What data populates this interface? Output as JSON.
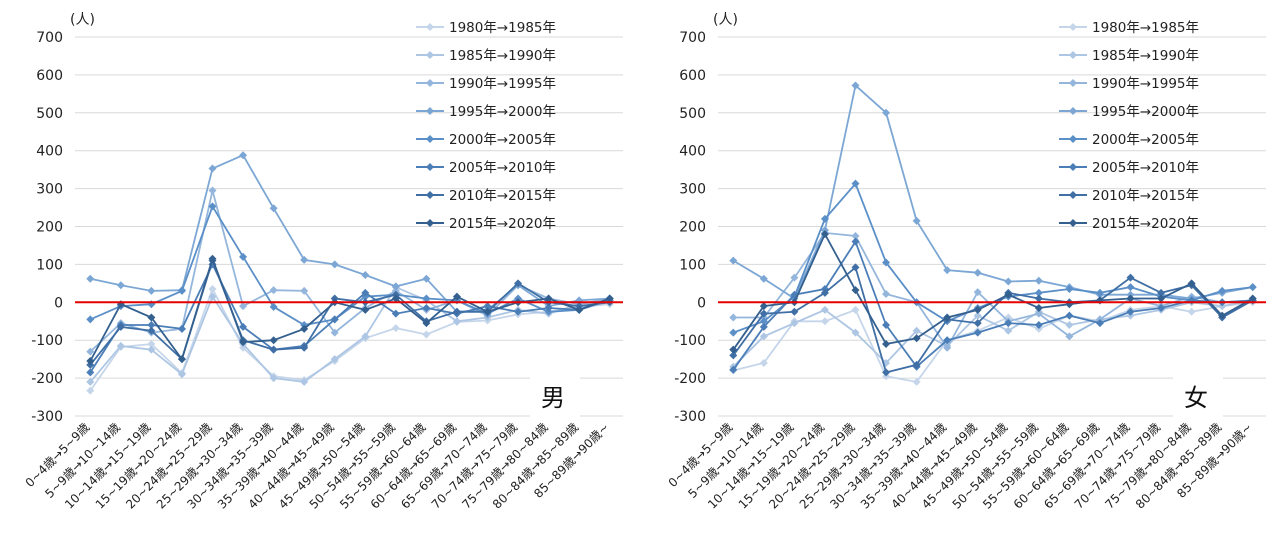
{
  "chart_data": [
    {
      "type": "line",
      "unit_label": "(人)",
      "panel_label": "男",
      "ylim": [
        -300,
        700
      ],
      "yticks": [
        700,
        600,
        500,
        400,
        300,
        200,
        100,
        0,
        -100,
        -200,
        -300
      ],
      "grid": true,
      "legend": "top-right",
      "zero_line_color": "#e60000",
      "categories": [
        "0~4歳→5~9歳",
        "5~9歳→10~14歳",
        "10~14歳→15~19歳",
        "15~19歳→20~24歳",
        "20~24歳→25~29歳",
        "25~29歳→30~34歳",
        "30~34歳→35~39歳",
        "35~39歳→40~44歳",
        "40~44歳→45~49歳",
        "45~49歳→50~54歳",
        "50~54歳→55~59歳",
        "55~59歳→60~64歳",
        "60~64歳→65~69歳",
        "65~69歳→70~74歳",
        "70~74歳→75~79歳",
        "75~79歳→80~84歳",
        "80~84歳→85~89歳",
        "85~89歳→90歳~"
      ],
      "series": [
        {
          "name": "1980年→1985年",
          "color": "#c6d6ea",
          "values": [
            -233,
            -118,
            -110,
            -187,
            35,
            -120,
            -195,
            -205,
            -155,
            -95,
            -68,
            -85,
            -52,
            -48,
            -32,
            -25,
            -12,
            -5
          ]
        },
        {
          "name": "1985年→1990年",
          "color": "#adc6e3",
          "values": [
            -210,
            -115,
            -125,
            -190,
            15,
            -110,
            -200,
            -210,
            -150,
            -90,
            40,
            5,
            -50,
            -40,
            -20,
            -30,
            -5,
            5
          ]
        },
        {
          "name": "1990年→1995年",
          "color": "#94b6dc",
          "values": [
            -130,
            -55,
            -80,
            -70,
            295,
            -10,
            32,
            30,
            -80,
            -15,
            30,
            -20,
            5,
            -35,
            45,
            10,
            -5,
            10
          ]
        },
        {
          "name": "1995年→2000年",
          "color": "#7ca7d5",
          "values": [
            62,
            45,
            30,
            32,
            353,
            388,
            248,
            112,
            100,
            72,
            42,
            62,
            -25,
            -20,
            45,
            -10,
            5,
            10
          ]
        },
        {
          "name": "2000年→2005年",
          "color": "#5b8fc7",
          "values": [
            -45,
            -10,
            -5,
            30,
            253,
            120,
            -12,
            -60,
            -45,
            15,
            20,
            10,
            5,
            -30,
            10,
            -25,
            -20,
            5
          ]
        },
        {
          "name": "2005年→2010年",
          "color": "#4b7eb7",
          "values": [
            -185,
            -60,
            -60,
            -70,
            100,
            -65,
            -125,
            -115,
            -45,
            25,
            -30,
            -15,
            -30,
            -10,
            -25,
            -15,
            -20,
            10
          ]
        },
        {
          "name": "2010年→2015年",
          "color": "#3f6fa5",
          "values": [
            -165,
            -65,
            -75,
            -150,
            110,
            -100,
            -125,
            -120,
            10,
            0,
            20,
            -50,
            -25,
            -25,
            50,
            0,
            -10,
            0
          ]
        },
        {
          "name": "2015年→2020年",
          "color": "#34608f",
          "values": [
            -155,
            -5,
            -40,
            -150,
            115,
            -105,
            -100,
            -70,
            0,
            -20,
            10,
            -55,
            15,
            -25,
            0,
            10,
            -20,
            10
          ]
        }
      ]
    },
    {
      "type": "line",
      "unit_label": "(人)",
      "panel_label": "女",
      "ylim": [
        -300,
        700
      ],
      "yticks": [
        700,
        600,
        500,
        400,
        300,
        200,
        100,
        0,
        -100,
        -200,
        -300
      ],
      "grid": true,
      "legend": "top-right",
      "zero_line_color": "#e60000",
      "categories": [
        "0~4歳→5~9歳",
        "5~9歳→10~14歳",
        "10~14歳→15~19歳",
        "15~19歳→20~24歳",
        "20~24歳→25~29歳",
        "25~29歳→30~34歳",
        "30~34歳→35~39歳",
        "35~39歳→40~44歳",
        "40~44歳→45~49歳",
        "45~49歳→50~54歳",
        "50~54歳→55~59歳",
        "55~59歳→60~64歳",
        "60~64歳→65~69歳",
        "65~69歳→70~74歳",
        "70~74歳→75~79歳",
        "75~79歳→80~84歳",
        "80~84歳→85~89歳",
        "85~89歳→90歳~"
      ],
      "series": [
        {
          "name": "1980年→1985年",
          "color": "#c6d6ea",
          "values": [
            -180,
            -160,
            -50,
            -50,
            -20,
            -195,
            -210,
            -100,
            -75,
            -40,
            -70,
            -35,
            -50,
            -20,
            -10,
            -25,
            -10,
            0
          ]
        },
        {
          "name": "1985年→1990年",
          "color": "#adc6e3",
          "values": [
            -170,
            -90,
            -55,
            -20,
            -80,
            -160,
            -75,
            -115,
            -35,
            -75,
            -25,
            -60,
            -45,
            -35,
            -20,
            0,
            -10,
            5
          ]
        },
        {
          "name": "1990年→1995年",
          "color": "#94b6dc",
          "values": [
            -40,
            -40,
            65,
            183,
            175,
            22,
            0,
            -120,
            27,
            -50,
            -30,
            -90,
            -45,
            10,
            -10,
            15,
            0,
            5
          ]
        },
        {
          "name": "1995年→2000年",
          "color": "#7ca7d5",
          "values": [
            110,
            62,
            10,
            190,
            572,
            500,
            215,
            85,
            78,
            55,
            57,
            40,
            20,
            20,
            20,
            10,
            25,
            40
          ]
        },
        {
          "name": "2000年→2005年",
          "color": "#5b8fc7",
          "values": [
            -80,
            -50,
            15,
            220,
            313,
            105,
            0,
            -50,
            -15,
            15,
            25,
            35,
            25,
            40,
            15,
            5,
            30,
            40
          ]
        },
        {
          "name": "2005年→2010年",
          "color": "#4b7eb7",
          "values": [
            -178,
            -65,
            20,
            35,
            160,
            -60,
            -170,
            -100,
            -80,
            -55,
            -60,
            -35,
            -55,
            -25,
            -15,
            5,
            0,
            5
          ]
        },
        {
          "name": "2010年→2015年",
          "color": "#3f6fa5",
          "values": [
            -140,
            -30,
            -25,
            25,
            92,
            -185,
            -165,
            -45,
            -55,
            25,
            10,
            0,
            5,
            65,
            25,
            45,
            -40,
            5
          ]
        },
        {
          "name": "2015年→2020年",
          "color": "#34608f",
          "values": [
            -125,
            -10,
            0,
            180,
            32,
            -110,
            -95,
            -40,
            -20,
            20,
            -15,
            -5,
            5,
            10,
            10,
            50,
            -35,
            10
          ]
        }
      ]
    }
  ]
}
